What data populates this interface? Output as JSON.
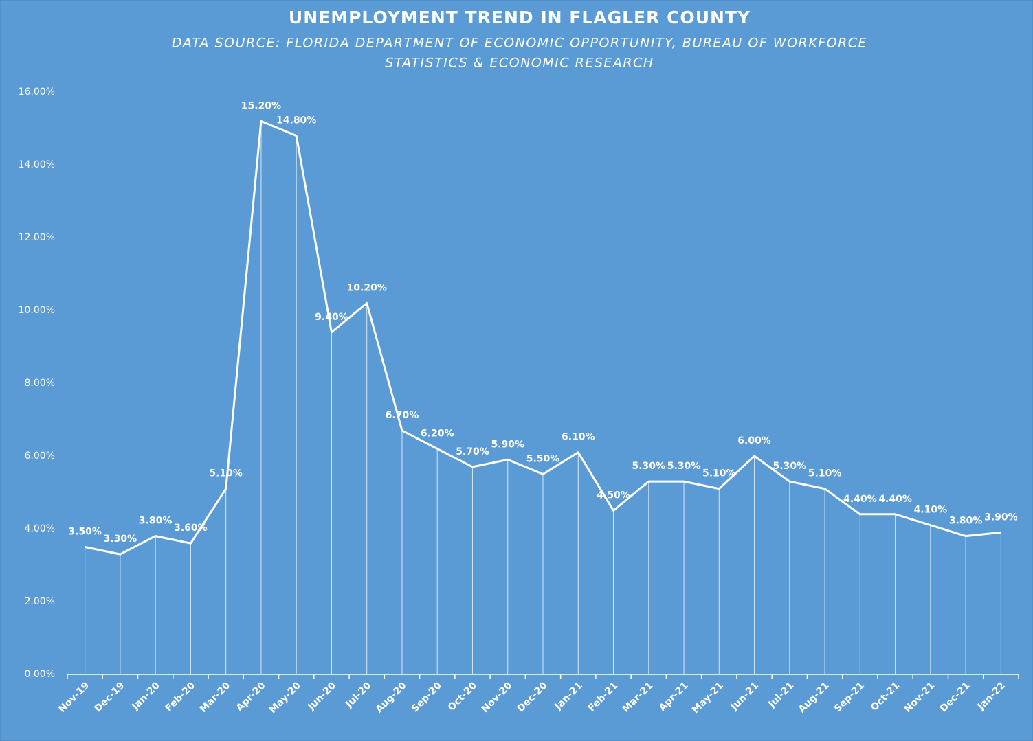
{
  "chart_data": {
    "type": "line",
    "title": "UNEMPLOYMENT TREND IN FLAGLER COUNTY",
    "subtitle": [
      "DATA SOURCE:  FLORIDA DEPARTMENT OF ECONOMIC OPPORTUNITY, BUREAU OF WORKFORCE",
      "STATISTICS & ECONOMIC RESEARCH"
    ],
    "categories": [
      "Nov-19",
      "Dec-19",
      "Jan-20",
      "Feb-20",
      "Mar-20",
      "Apr-20",
      "May-20",
      "Jun-20",
      "Jul-20",
      "Aug-20",
      "Sep-20",
      "Oct-20",
      "Nov-20",
      "Dec-20",
      "Jan-21",
      "Feb-21",
      "Mar-21",
      "Apr-21",
      "May-21",
      "Jun-21",
      "Jul-21",
      "Aug-21",
      "Sep-21",
      "Oct-21",
      "Nov-21",
      "Dec-21",
      "Jan-22"
    ],
    "values": [
      3.5,
      3.3,
      3.8,
      3.6,
      5.1,
      15.2,
      14.8,
      9.4,
      10.2,
      6.7,
      6.2,
      5.7,
      5.9,
      5.5,
      6.1,
      4.5,
      5.3,
      5.3,
      5.1,
      6.0,
      5.3,
      5.1,
      4.4,
      4.4,
      4.1,
      3.8,
      3.9
    ],
    "value_labels": [
      "3.50%",
      "3.30%",
      "3.80%",
      "3.60%",
      "5.10%",
      "15.20%",
      "14.80%",
      "9.40%",
      "10.20%",
      "6.70%",
      "6.20%",
      "5.70%",
      "5.90%",
      "5.50%",
      "6.10%",
      "4.50%",
      "5.30%",
      "5.30%",
      "5.10%",
      "6.00%",
      "5.30%",
      "5.10%",
      "4.40%",
      "4.40%",
      "4.10%",
      "3.80%",
      "3.90%"
    ],
    "color": "#ffffff",
    "ylim": [
      0,
      16
    ],
    "yticks": [
      {
        "value": 0,
        "label": "0.00%"
      },
      {
        "value": 2,
        "label": "2.00%"
      },
      {
        "value": 4,
        "label": "4.00%"
      },
      {
        "value": 6,
        "label": "6.00%"
      },
      {
        "value": 8,
        "label": "8.00%"
      },
      {
        "value": 10,
        "label": "10.00%"
      },
      {
        "value": 12,
        "label": "12.00%"
      },
      {
        "value": 14,
        "label": "14.00%"
      },
      {
        "value": 16,
        "label": "16.00%"
      }
    ],
    "grid": false
  }
}
